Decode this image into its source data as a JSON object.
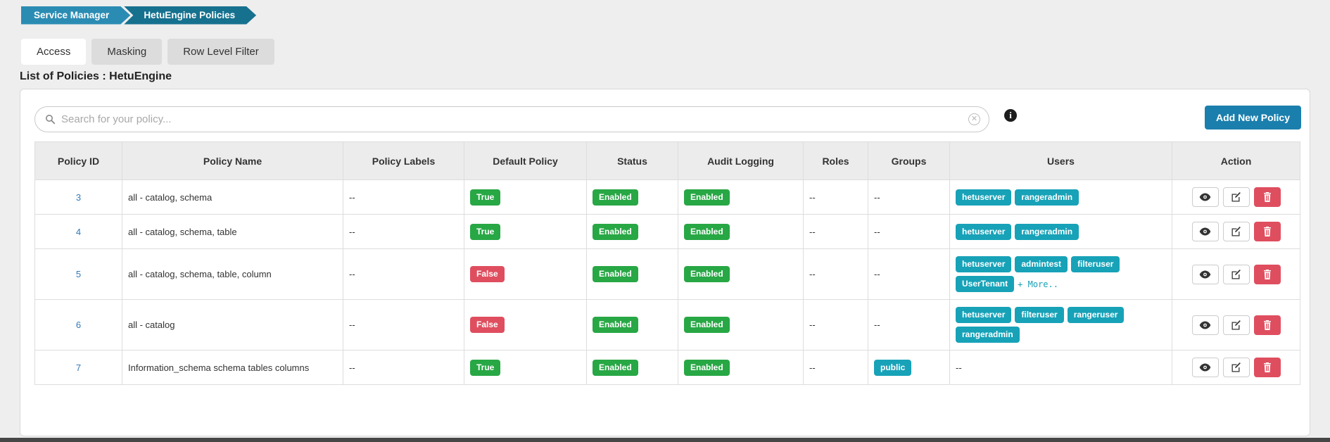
{
  "breadcrumb": [
    {
      "label": "Service Manager"
    },
    {
      "label": "HetuEngine Policies"
    }
  ],
  "tabs": [
    {
      "label": "Access",
      "active": true
    },
    {
      "label": "Masking",
      "active": false
    },
    {
      "label": "Row Level Filter",
      "active": false
    }
  ],
  "page_title": "List of Policies : HetuEngine",
  "toolbar": {
    "search_placeholder": "Search for your policy...",
    "add_button_label": "Add New Policy"
  },
  "table": {
    "columns": [
      "Policy ID",
      "Policy Name",
      "Policy Labels",
      "Default Policy",
      "Status",
      "Audit Logging",
      "Roles",
      "Groups",
      "Users",
      "Action"
    ],
    "rows": [
      {
        "policy_id": "3",
        "policy_name": "all - catalog, schema",
        "policy_labels": "--",
        "default_policy": {
          "label": "True",
          "variant": "success"
        },
        "status": {
          "label": "Enabled",
          "variant": "success"
        },
        "audit_logging": {
          "label": "Enabled",
          "variant": "success"
        },
        "roles": "--",
        "groups_badges": [],
        "groups_text": "--",
        "users_badges": [
          "hetuserver",
          "rangeradmin"
        ],
        "users_text": "",
        "users_more": ""
      },
      {
        "policy_id": "4",
        "policy_name": "all - catalog, schema, table",
        "policy_labels": "--",
        "default_policy": {
          "label": "True",
          "variant": "success"
        },
        "status": {
          "label": "Enabled",
          "variant": "success"
        },
        "audit_logging": {
          "label": "Enabled",
          "variant": "success"
        },
        "roles": "--",
        "groups_badges": [],
        "groups_text": "--",
        "users_badges": [
          "hetuserver",
          "rangeradmin"
        ],
        "users_text": "",
        "users_more": ""
      },
      {
        "policy_id": "5",
        "policy_name": "all - catalog, schema, table, column",
        "policy_labels": "--",
        "default_policy": {
          "label": "False",
          "variant": "danger"
        },
        "status": {
          "label": "Enabled",
          "variant": "success"
        },
        "audit_logging": {
          "label": "Enabled",
          "variant": "success"
        },
        "roles": "--",
        "groups_badges": [],
        "groups_text": "--",
        "users_badges": [
          "hetuserver",
          "admintest",
          "filteruser",
          "UserTenant"
        ],
        "users_text": "",
        "users_more": "+ More.."
      },
      {
        "policy_id": "6",
        "policy_name": "all - catalog",
        "policy_labels": "--",
        "default_policy": {
          "label": "False",
          "variant": "danger"
        },
        "status": {
          "label": "Enabled",
          "variant": "success"
        },
        "audit_logging": {
          "label": "Enabled",
          "variant": "success"
        },
        "roles": "--",
        "groups_badges": [],
        "groups_text": "--",
        "users_badges": [
          "hetuserver",
          "filteruser",
          "rangeruser",
          "rangeradmin"
        ],
        "users_text": "",
        "users_more": ""
      },
      {
        "policy_id": "7",
        "policy_name": "Information_schema schema tables columns",
        "policy_labels": "--",
        "default_policy": {
          "label": "True",
          "variant": "success"
        },
        "status": {
          "label": "Enabled",
          "variant": "success"
        },
        "audit_logging": {
          "label": "Enabled",
          "variant": "success"
        },
        "roles": "--",
        "groups_badges": [
          "public"
        ],
        "groups_text": "",
        "users_badges": [],
        "users_text": "--",
        "users_more": ""
      }
    ]
  },
  "colors": {
    "breadcrumb": [
      "#2b8cb3",
      "#16718f"
    ],
    "badge_success": "#28a745",
    "badge_danger": "#df4e5f",
    "badge_info": "#17a2b8",
    "primary_button": "#1b7fad",
    "link": "#337ab7"
  }
}
